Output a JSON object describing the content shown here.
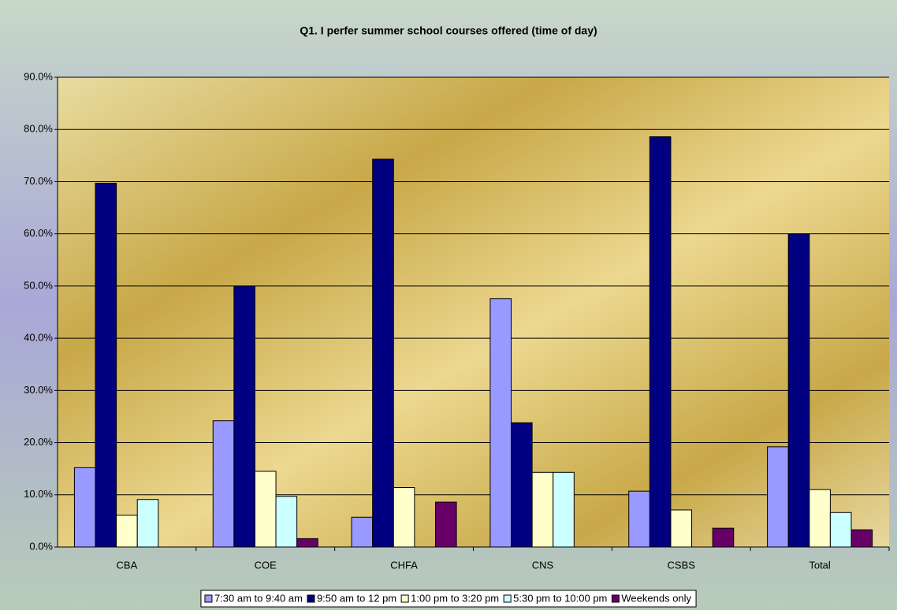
{
  "chart_data": {
    "type": "bar",
    "title": "Q1. I perfer summer school courses offered (time of day)",
    "categories": [
      "CBA",
      "COE",
      "CHFA",
      "CNS",
      "CSBS",
      "Total"
    ],
    "series": [
      {
        "name": "7:30 am to 9:40 am",
        "color": "#9999ff",
        "values": [
          15.2,
          24.2,
          5.7,
          47.6,
          10.7,
          19.2
        ]
      },
      {
        "name": "9:50 am to 12 pm",
        "color": "#000080",
        "values": [
          69.7,
          50.0,
          74.3,
          23.8,
          78.6,
          60.0
        ]
      },
      {
        "name": "1:00 pm to 3:20 pm",
        "color": "#ffffcc",
        "values": [
          6.1,
          14.5,
          11.4,
          14.3,
          7.1,
          11.0
        ]
      },
      {
        "name": "5:30 pm to 10:00 pm",
        "color": "#ccffff",
        "values": [
          9.1,
          9.7,
          0,
          14.3,
          0,
          6.6
        ]
      },
      {
        "name": "Weekends only",
        "color": "#660066",
        "values": [
          0,
          1.6,
          8.6,
          0,
          3.6,
          3.3
        ]
      }
    ],
    "ylim": [
      0,
      90
    ],
    "yticks": [
      {
        "value": 0,
        "label": "0.0%"
      },
      {
        "value": 10,
        "label": "10.0%"
      },
      {
        "value": 20,
        "label": "20.0%"
      },
      {
        "value": 30,
        "label": "30.0%"
      },
      {
        "value": 40,
        "label": "40.0%"
      },
      {
        "value": 50,
        "label": "50.0%"
      },
      {
        "value": 60,
        "label": "60.0%"
      },
      {
        "value": 70,
        "label": "70.0%"
      },
      {
        "value": 80,
        "label": "80.0%"
      },
      {
        "value": 90,
        "label": "90.0%"
      }
    ],
    "grid": true,
    "legend": "bottom"
  }
}
